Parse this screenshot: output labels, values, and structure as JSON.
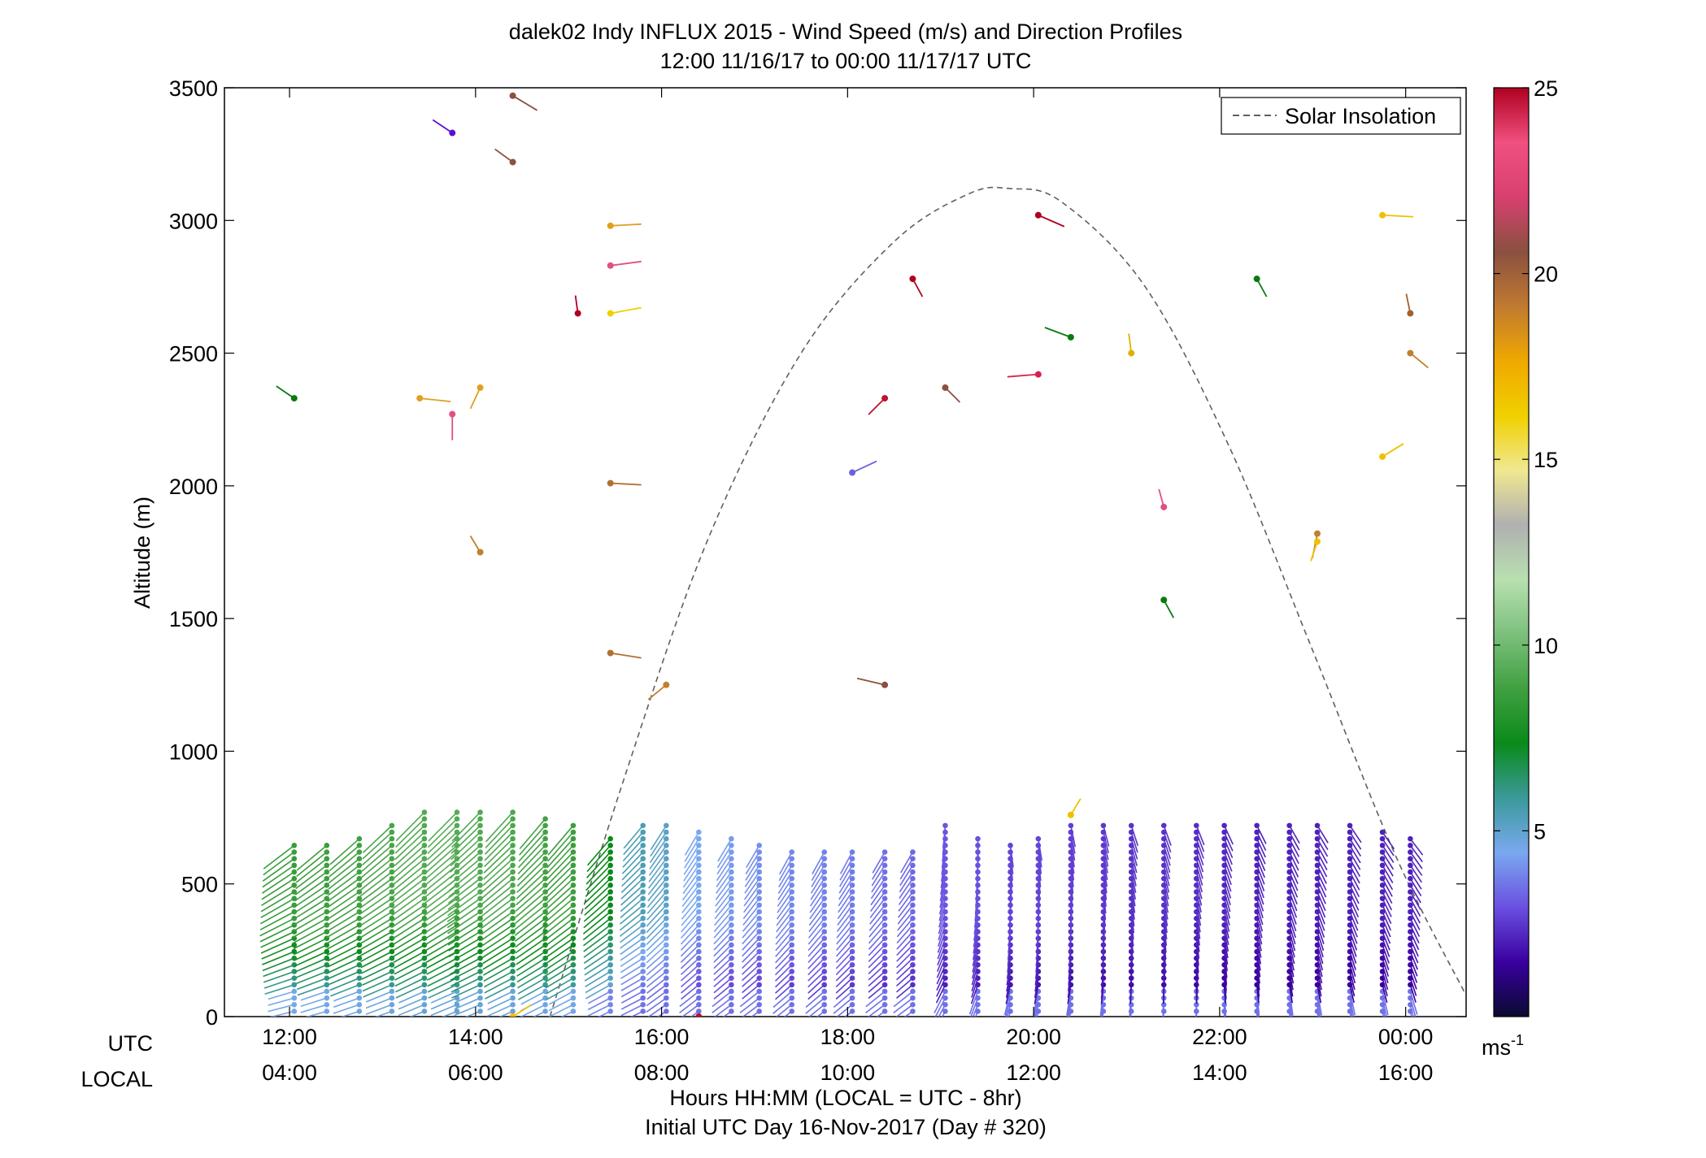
{
  "chart_data": {
    "type": "wind-barb-profile",
    "title": "dalek02 Indy INFLUX 2015 - Wind Speed (m/s) and Direction Profiles",
    "subtitle": "12:00 11/16/17 to 00:00 11/17/17  UTC",
    "ylabel": "Altitude (m)",
    "xlabel": "Hours HH:MM  (LOCAL = UTC - 8hr)",
    "xlabel2": "Initial UTC Day 16-Nov-2017 (Day # 320)",
    "row_label_utc": "UTC",
    "row_label_local": "LOCAL",
    "ylim": [
      0,
      3500
    ],
    "y_ticks": [
      0,
      500,
      1000,
      1500,
      2000,
      2500,
      3000,
      3500
    ],
    "x_range_hours": [
      11.3,
      24.65
    ],
    "x_ticks": [
      {
        "hour": 12,
        "utc": "12:00",
        "local": "04:00"
      },
      {
        "hour": 14,
        "utc": "14:00",
        "local": "06:00"
      },
      {
        "hour": 16,
        "utc": "16:00",
        "local": "08:00"
      },
      {
        "hour": 18,
        "utc": "18:00",
        "local": "10:00"
      },
      {
        "hour": 20,
        "utc": "20:00",
        "local": "12:00"
      },
      {
        "hour": 22,
        "utc": "22:00",
        "local": "14:00"
      },
      {
        "hour": 24,
        "utc": "00:00",
        "local": "16:00"
      }
    ],
    "legend": {
      "label": "Solar Insolation",
      "placement": "top-right"
    },
    "colorbar": {
      "range": [
        0,
        25
      ],
      "ticks": [
        5,
        10,
        15,
        20,
        25
      ],
      "unit": "ms-1",
      "colors": [
        "#0a0a30",
        "#3a00a0",
        "#6a50e0",
        "#7aa8f0",
        "#3a9a9a",
        "#0a8a1a",
        "#40a040",
        "#7cc07c",
        "#b8e0b0",
        "#b0b0b0",
        "#f0e890",
        "#f0d000",
        "#f0a800",
        "#c07a30",
        "#8a5040",
        "#d84070",
        "#f05080",
        "#b00020"
      ]
    },
    "solar_insolation": {
      "style": "dashed",
      "color": "#606060",
      "points": [
        [
          14.8,
          0
        ],
        [
          15.6,
          900
        ],
        [
          16.5,
          1800
        ],
        [
          17.5,
          2500
        ],
        [
          18.5,
          2920
        ],
        [
          19.3,
          3100
        ],
        [
          19.75,
          3120
        ],
        [
          20.3,
          3070
        ],
        [
          21.2,
          2750
        ],
        [
          22.1,
          2150
        ],
        [
          23.0,
          1380
        ],
        [
          23.9,
          600
        ],
        [
          24.65,
          80
        ]
      ]
    },
    "profiles": [
      {
        "hour": 12.05,
        "top": 660,
        "speed": 8.2,
        "dir": 128
      },
      {
        "hour": 12.4,
        "top": 650,
        "speed": 8.3,
        "dir": 130
      },
      {
        "hour": 12.75,
        "top": 690,
        "speed": 8.4,
        "dir": 132
      },
      {
        "hour": 13.1,
        "top": 740,
        "speed": 8.6,
        "dir": 134
      },
      {
        "hour": 13.45,
        "top": 790,
        "speed": 8.8,
        "dir": 136
      },
      {
        "hour": 13.8,
        "top": 790,
        "speed": 8.9,
        "dir": 136
      },
      {
        "hour": 14.05,
        "top": 780,
        "speed": 8.8,
        "dir": 136
      },
      {
        "hour": 14.4,
        "top": 780,
        "speed": 8.7,
        "dir": 138
      },
      {
        "hour": 14.75,
        "top": 760,
        "speed": 8.5,
        "dir": 140
      },
      {
        "hour": 15.05,
        "top": 730,
        "speed": 8.3,
        "dir": 140
      },
      {
        "hour": 15.45,
        "top": 690,
        "speed": 7.0,
        "dir": 140
      },
      {
        "hour": 15.8,
        "top": 720,
        "speed": 5.2,
        "dir": 140
      },
      {
        "hour": 16.05,
        "top": 730,
        "speed": 4.9,
        "dir": 148
      },
      {
        "hour": 16.4,
        "top": 710,
        "speed": 4.2,
        "dir": 150
      },
      {
        "hour": 16.75,
        "top": 690,
        "speed": 4.0,
        "dir": 150
      },
      {
        "hour": 17.05,
        "top": 650,
        "speed": 3.8,
        "dir": 150
      },
      {
        "hour": 17.4,
        "top": 640,
        "speed": 3.7,
        "dir": 152
      },
      {
        "hour": 17.75,
        "top": 640,
        "speed": 3.6,
        "dir": 152
      },
      {
        "hour": 18.05,
        "top": 630,
        "speed": 3.5,
        "dir": 152
      },
      {
        "hour": 18.4,
        "top": 620,
        "speed": 3.3,
        "dir": 150
      },
      {
        "hour": 18.7,
        "top": 620,
        "speed": 3.2,
        "dir": 150
      },
      {
        "hour": 19.05,
        "top": 730,
        "speed": 2.9,
        "dir": 175
      },
      {
        "hour": 19.4,
        "top": 690,
        "speed": 2.8,
        "dir": 182
      },
      {
        "hour": 19.75,
        "top": 660,
        "speed": 2.6,
        "dir": 188
      },
      {
        "hour": 20.05,
        "top": 690,
        "speed": 2.6,
        "dir": 190
      },
      {
        "hour": 20.4,
        "top": 730,
        "speed": 2.5,
        "dir": 192
      },
      {
        "hour": 20.75,
        "top": 730,
        "speed": 2.4,
        "dir": 195
      },
      {
        "hour": 21.05,
        "top": 720,
        "speed": 2.3,
        "dir": 198
      },
      {
        "hour": 21.4,
        "top": 730,
        "speed": 2.3,
        "dir": 200
      },
      {
        "hour": 21.75,
        "top": 730,
        "speed": 2.2,
        "dir": 202
      },
      {
        "hour": 22.05,
        "top": 730,
        "speed": 2.1,
        "dir": 205
      },
      {
        "hour": 22.4,
        "top": 730,
        "speed": 2.0,
        "dir": 207
      },
      {
        "hour": 22.75,
        "top": 730,
        "speed": 2.0,
        "dir": 210
      },
      {
        "hour": 23.05,
        "top": 730,
        "speed": 2.0,
        "dir": 212
      },
      {
        "hour": 23.4,
        "top": 730,
        "speed": 2.0,
        "dir": 214
      },
      {
        "hour": 23.75,
        "top": 700,
        "speed": 2.0,
        "dir": 215
      },
      {
        "hour": 24.05,
        "top": 690,
        "speed": 2.0,
        "dir": 218
      }
    ],
    "upper_points": [
      {
        "hour": 12.05,
        "alt": 2330,
        "dx": -22,
        "dy": -15,
        "color": "#0a7a10"
      },
      {
        "hour": 13.4,
        "alt": 2330,
        "dx": 38,
        "dy": 4,
        "color": "#e0a020"
      },
      {
        "hour": 13.75,
        "alt": 2270,
        "dx": 0,
        "dy": 32,
        "color": "#e05080"
      },
      {
        "hour": 13.75,
        "alt": 3330,
        "dx": -24,
        "dy": -16,
        "color": "#5a10d0"
      },
      {
        "hour": 14.05,
        "alt": 2370,
        "dx": -12,
        "dy": 26,
        "color": "#e0a020"
      },
      {
        "hour": 14.05,
        "alt": 1750,
        "dx": -12,
        "dy": -20,
        "color": "#c08030"
      },
      {
        "hour": 14.4,
        "alt": 3220,
        "dx": -22,
        "dy": -16,
        "color": "#8a5040"
      },
      {
        "hour": 14.4,
        "alt": 3470,
        "dx": 30,
        "dy": 18,
        "color": "#8a5040"
      },
      {
        "hour": 15.1,
        "alt": 2650,
        "dx": -3,
        "dy": -22,
        "color": "#b00020"
      },
      {
        "hour": 15.45,
        "alt": 2980,
        "dx": 38,
        "dy": -2,
        "color": "#e0a020"
      },
      {
        "hour": 15.45,
        "alt": 2830,
        "dx": 38,
        "dy": -5,
        "color": "#e05080"
      },
      {
        "hour": 15.45,
        "alt": 2650,
        "dx": 38,
        "dy": -7,
        "color": "#f0d000"
      },
      {
        "hour": 15.45,
        "alt": 2010,
        "dx": 38,
        "dy": 2,
        "color": "#b07030"
      },
      {
        "hour": 15.45,
        "alt": 1370,
        "dx": 38,
        "dy": 6,
        "color": "#b07030"
      },
      {
        "hour": 16.05,
        "alt": 1250,
        "dx": -22,
        "dy": 18,
        "color": "#c08030"
      },
      {
        "hour": 18.05,
        "alt": 2050,
        "dx": 30,
        "dy": -14,
        "color": "#6a60e0"
      },
      {
        "hour": 18.4,
        "alt": 2330,
        "dx": -20,
        "dy": 20,
        "color": "#c01030"
      },
      {
        "hour": 18.4,
        "alt": 1250,
        "dx": -34,
        "dy": -8,
        "color": "#8a5040"
      },
      {
        "hour": 18.7,
        "alt": 2780,
        "dx": 12,
        "dy": 22,
        "color": "#b00020"
      },
      {
        "hour": 19.05,
        "alt": 2370,
        "dx": 18,
        "dy": 18,
        "color": "#8a5040"
      },
      {
        "hour": 20.05,
        "alt": 3020,
        "dx": 32,
        "dy": 14,
        "color": "#b00020"
      },
      {
        "hour": 20.05,
        "alt": 2420,
        "dx": -38,
        "dy": 3,
        "color": "#d82050"
      },
      {
        "hour": 20.4,
        "alt": 2560,
        "dx": -32,
        "dy": -12,
        "color": "#0a7a10"
      },
      {
        "hour": 20.4,
        "alt": 760,
        "dx": 12,
        "dy": -20,
        "color": "#f0c000"
      },
      {
        "hour": 21.05,
        "alt": 2500,
        "dx": -3,
        "dy": -24,
        "color": "#e0b000"
      },
      {
        "hour": 21.4,
        "alt": 1920,
        "dx": -6,
        "dy": -22,
        "color": "#e05080"
      },
      {
        "hour": 21.4,
        "alt": 1570,
        "dx": 12,
        "dy": 22,
        "color": "#0a7a10"
      },
      {
        "hour": 22.4,
        "alt": 2780,
        "dx": 12,
        "dy": 22,
        "color": "#0a7a10"
      },
      {
        "hour": 23.05,
        "alt": 1820,
        "dx": -6,
        "dy": 30,
        "color": "#c08030"
      },
      {
        "hour": 23.05,
        "alt": 1790,
        "dx": -8,
        "dy": 24,
        "color": "#f0c000"
      },
      {
        "hour": 23.75,
        "alt": 3020,
        "dx": 38,
        "dy": 2,
        "color": "#f0c000"
      },
      {
        "hour": 23.75,
        "alt": 2110,
        "dx": 26,
        "dy": -16,
        "color": "#f0c000"
      },
      {
        "hour": 24.05,
        "alt": 2650,
        "dx": -5,
        "dy": -24,
        "color": "#a06030"
      },
      {
        "hour": 24.05,
        "alt": 2500,
        "dx": 22,
        "dy": 18,
        "color": "#c08030"
      },
      {
        "hour": 14.4,
        "alt": 0,
        "dx": 22,
        "dy": -14,
        "color": "#f0c000"
      },
      {
        "hour": 16.4,
        "alt": 0,
        "dx": -10,
        "dy": 2,
        "color": "#c01030"
      }
    ]
  }
}
